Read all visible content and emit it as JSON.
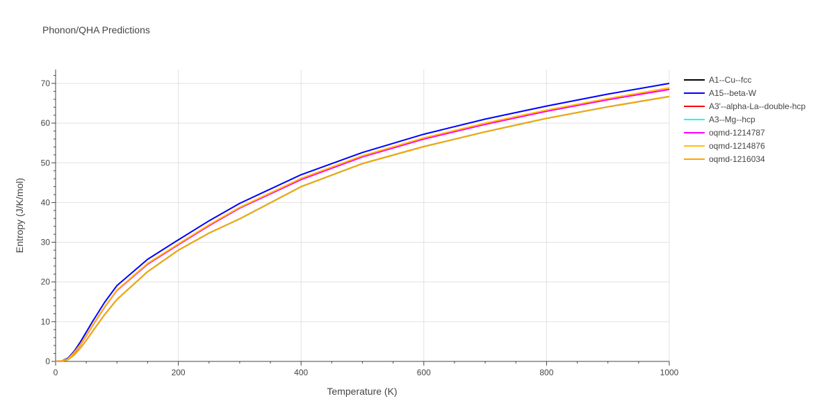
{
  "chart_data": {
    "type": "line",
    "title": "Phonon/QHA Predictions",
    "xlabel": "Temperature (K)",
    "ylabel": "Entropy (J/K/mol)",
    "xlim": [
      0,
      1000
    ],
    "ylim": [
      0,
      73.5
    ],
    "xticks": [
      0,
      200,
      400,
      600,
      800,
      1000
    ],
    "yticks": [
      0,
      10,
      20,
      30,
      40,
      50,
      60,
      70
    ],
    "grid": true,
    "legend_position": "right",
    "series": [
      {
        "name": "A1--Cu--fcc",
        "color": "#000000",
        "x": [
          0,
          10,
          20,
          30,
          40,
          50,
          60,
          80,
          100,
          150,
          200,
          250,
          300,
          400,
          500,
          600,
          700,
          800,
          900,
          1000
        ],
        "y": [
          0,
          0.05,
          0.45,
          1.6,
          3.3,
          5.3,
          7.5,
          11.8,
          15.6,
          22.6,
          28.0,
          32.3,
          35.9,
          44.0,
          49.8,
          54.1,
          57.8,
          61.2,
          64.1,
          66.7
        ]
      },
      {
        "name": "A15--beta-W",
        "color": "#0000ff",
        "x": [
          0,
          10,
          20,
          30,
          40,
          50,
          60,
          80,
          100,
          150,
          200,
          250,
          300,
          400,
          500,
          600,
          700,
          800,
          900,
          1000
        ],
        "y": [
          0,
          0.1,
          0.8,
          2.5,
          4.8,
          7.4,
          10.0,
          14.9,
          19.1,
          25.7,
          30.6,
          35.4,
          39.8,
          47.0,
          52.6,
          57.2,
          61.0,
          64.3,
          67.3,
          70.0
        ]
      },
      {
        "name": "A3'--alpha-La--double-hcp",
        "color": "#ff0000",
        "x": [
          0,
          10,
          20,
          30,
          40,
          50,
          60,
          80,
          100,
          150,
          200,
          250,
          300,
          400,
          500,
          600,
          700,
          800,
          900,
          1000
        ],
        "y": [
          0,
          0.07,
          0.6,
          2.1,
          4.1,
          6.5,
          9.0,
          13.7,
          17.9,
          24.5,
          29.4,
          34.2,
          38.6,
          45.8,
          51.5,
          56.0,
          59.7,
          63.0,
          65.9,
          68.5
        ]
      },
      {
        "name": "A3--Mg--hcp",
        "color": "#00ffff",
        "x": [
          0,
          10,
          20,
          30,
          40,
          50,
          60,
          80,
          100,
          150,
          200,
          250,
          300,
          400,
          500,
          600,
          700,
          800,
          900,
          1000
        ],
        "y": [
          0,
          0.05,
          0.45,
          1.6,
          3.3,
          5.3,
          7.5,
          11.8,
          15.6,
          22.6,
          28.0,
          32.3,
          35.9,
          44.0,
          49.8,
          54.1,
          57.8,
          61.2,
          64.1,
          66.7
        ]
      },
      {
        "name": "oqmd-1214787",
        "color": "#ff00ff",
        "x": [
          0,
          10,
          20,
          30,
          40,
          50,
          60,
          80,
          100,
          150,
          200,
          250,
          300,
          400,
          500,
          600,
          700,
          800,
          900,
          1000
        ],
        "y": [
          0,
          0.07,
          0.6,
          2.1,
          4.1,
          6.5,
          9.0,
          13.7,
          17.9,
          24.5,
          29.4,
          34.2,
          38.6,
          45.8,
          51.5,
          56.0,
          59.7,
          63.0,
          65.9,
          68.5
        ]
      },
      {
        "name": "oqmd-1214876",
        "color": "#ffc000",
        "x": [
          0,
          10,
          20,
          30,
          40,
          50,
          60,
          80,
          100,
          150,
          200,
          250,
          300,
          400,
          500,
          600,
          700,
          800,
          900,
          1000
        ],
        "y": [
          0,
          0.07,
          0.6,
          2.2,
          4.2,
          6.6,
          9.1,
          13.8,
          18.0,
          24.7,
          29.6,
          34.4,
          38.8,
          46.1,
          51.8,
          56.3,
          60.0,
          63.3,
          66.2,
          68.9
        ]
      },
      {
        "name": "oqmd-1216034",
        "color": "#ffa500",
        "x": [
          0,
          10,
          20,
          30,
          40,
          50,
          60,
          80,
          100,
          150,
          200,
          250,
          300,
          400,
          500,
          600,
          700,
          800,
          900,
          1000
        ],
        "y": [
          0,
          0.05,
          0.45,
          1.6,
          3.3,
          5.3,
          7.5,
          11.8,
          15.6,
          22.6,
          28.0,
          32.3,
          35.9,
          44.0,
          49.8,
          54.1,
          57.8,
          61.2,
          64.1,
          66.7
        ]
      }
    ]
  }
}
